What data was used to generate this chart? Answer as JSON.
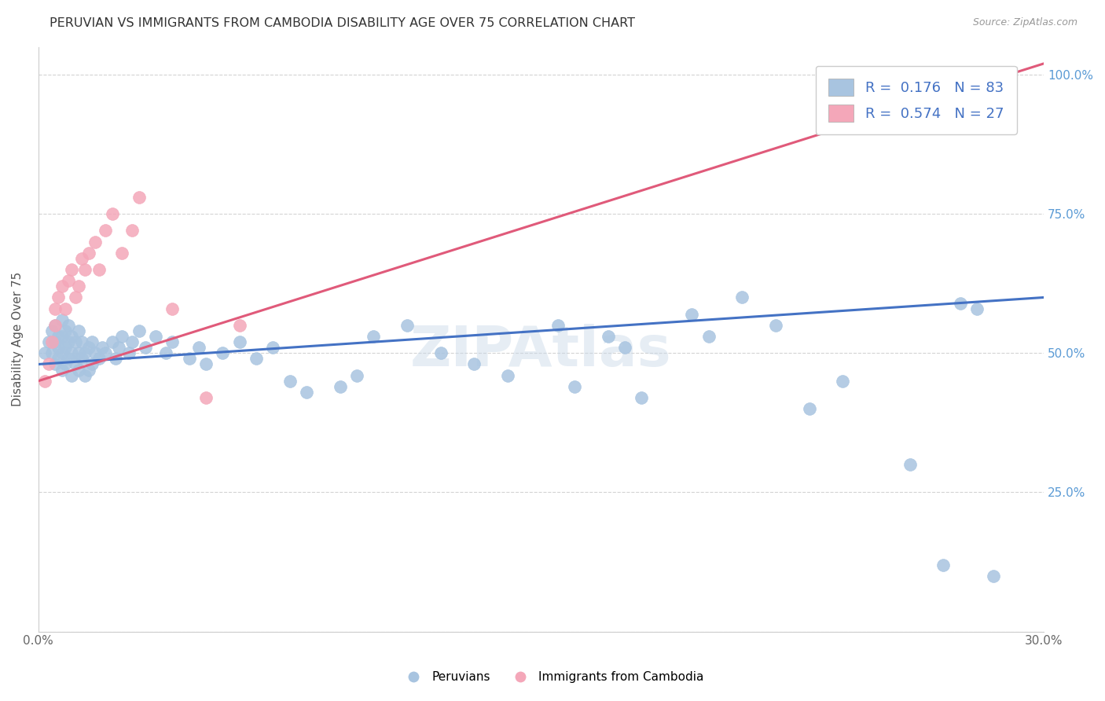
{
  "title": "PERUVIAN VS IMMIGRANTS FROM CAMBODIA DISABILITY AGE OVER 75 CORRELATION CHART",
  "source": "Source: ZipAtlas.com",
  "ylabel": "Disability Age Over 75",
  "x_min": 0.0,
  "x_max": 0.3,
  "y_min": 0.0,
  "y_max": 1.05,
  "blue_color": "#a8c4e0",
  "pink_color": "#f4a7b9",
  "blue_line_color": "#4472c4",
  "pink_line_color": "#e05a7a",
  "grid_color": "#c8c8c8",
  "legend_text_color": "#4472c4",
  "peruvians_x": [
    0.002,
    0.003,
    0.004,
    0.004,
    0.005,
    0.005,
    0.005,
    0.006,
    0.006,
    0.006,
    0.007,
    0.007,
    0.007,
    0.007,
    0.008,
    0.008,
    0.008,
    0.009,
    0.009,
    0.009,
    0.01,
    0.01,
    0.01,
    0.011,
    0.011,
    0.012,
    0.012,
    0.012,
    0.013,
    0.013,
    0.014,
    0.014,
    0.015,
    0.015,
    0.016,
    0.016,
    0.017,
    0.018,
    0.019,
    0.02,
    0.022,
    0.023,
    0.024,
    0.025,
    0.027,
    0.028,
    0.03,
    0.032,
    0.035,
    0.038,
    0.04,
    0.045,
    0.048,
    0.05,
    0.055,
    0.06,
    0.065,
    0.07,
    0.075,
    0.08,
    0.09,
    0.095,
    0.1,
    0.11,
    0.12,
    0.13,
    0.14,
    0.155,
    0.16,
    0.17,
    0.175,
    0.18,
    0.195,
    0.2,
    0.21,
    0.22,
    0.23,
    0.24,
    0.26,
    0.27,
    0.275,
    0.28,
    0.285
  ],
  "peruvians_y": [
    0.5,
    0.52,
    0.5,
    0.54,
    0.48,
    0.52,
    0.55,
    0.49,
    0.51,
    0.53,
    0.47,
    0.5,
    0.53,
    0.56,
    0.48,
    0.51,
    0.54,
    0.49,
    0.52,
    0.55,
    0.46,
    0.5,
    0.53,
    0.48,
    0.52,
    0.47,
    0.5,
    0.54,
    0.49,
    0.52,
    0.46,
    0.5,
    0.47,
    0.51,
    0.48,
    0.52,
    0.5,
    0.49,
    0.51,
    0.5,
    0.52,
    0.49,
    0.51,
    0.53,
    0.5,
    0.52,
    0.54,
    0.51,
    0.53,
    0.5,
    0.52,
    0.49,
    0.51,
    0.48,
    0.5,
    0.52,
    0.49,
    0.51,
    0.45,
    0.43,
    0.44,
    0.46,
    0.53,
    0.55,
    0.5,
    0.48,
    0.46,
    0.55,
    0.44,
    0.53,
    0.51,
    0.42,
    0.57,
    0.53,
    0.6,
    0.55,
    0.4,
    0.45,
    0.3,
    0.12,
    0.59,
    0.58,
    0.1
  ],
  "cambodia_x": [
    0.002,
    0.003,
    0.004,
    0.005,
    0.005,
    0.006,
    0.007,
    0.008,
    0.009,
    0.01,
    0.011,
    0.012,
    0.013,
    0.014,
    0.015,
    0.017,
    0.018,
    0.02,
    0.022,
    0.025,
    0.028,
    0.03,
    0.04,
    0.05,
    0.06,
    0.25,
    0.29
  ],
  "cambodia_y": [
    0.45,
    0.48,
    0.52,
    0.55,
    0.58,
    0.6,
    0.62,
    0.58,
    0.63,
    0.65,
    0.6,
    0.62,
    0.67,
    0.65,
    0.68,
    0.7,
    0.65,
    0.72,
    0.75,
    0.68,
    0.72,
    0.78,
    0.58,
    0.42,
    0.55,
    0.92,
    1.0
  ],
  "blue_line_x0": 0.0,
  "blue_line_y0": 0.48,
  "blue_line_x1": 0.3,
  "blue_line_y1": 0.6,
  "pink_line_x0": 0.0,
  "pink_line_y0": 0.45,
  "pink_line_x1": 0.3,
  "pink_line_y1": 1.02
}
